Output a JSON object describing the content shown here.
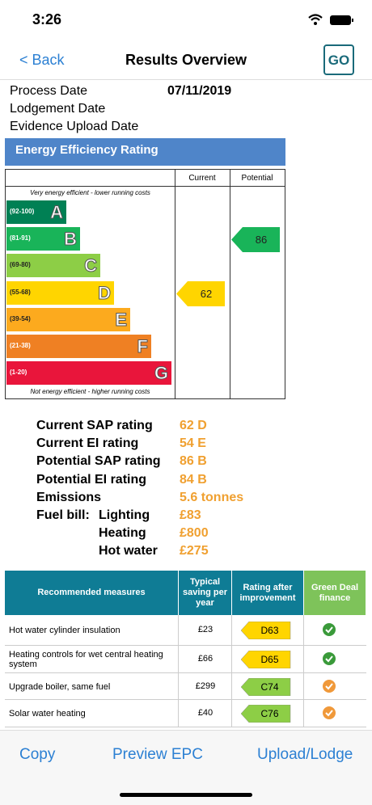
{
  "status_bar": {
    "time": "3:26"
  },
  "nav": {
    "back": "< Back",
    "title": "Results Overview",
    "logo": "GO"
  },
  "details": [
    {
      "label": "Process Date",
      "value": "07/11/2019"
    },
    {
      "label": "Lodgement Date"
    },
    {
      "label": "Evidence Upload Date"
    }
  ],
  "epc": {
    "title": "Energy Efficiency Rating",
    "col_current": "Current",
    "col_potential": "Potential",
    "top_note": "Very energy efficient - lower running costs",
    "bottom_note": "Not energy efficient - higher running costs",
    "bands": [
      {
        "range": "(92-100)",
        "letter": "A",
        "color": "#008054"
      },
      {
        "range": "(81-91)",
        "letter": "B",
        "color": "#19b459"
      },
      {
        "range": "(69-80)",
        "letter": "C",
        "color": "#8dce46"
      },
      {
        "range": "(55-68)",
        "letter": "D",
        "color": "#ffd500"
      },
      {
        "range": "(39-54)",
        "letter": "E",
        "color": "#fcaa1e"
      },
      {
        "range": "(21-38)",
        "letter": "F",
        "color": "#ef8023"
      },
      {
        "range": "(1-20)",
        "letter": "G",
        "color": "#e9153b"
      }
    ],
    "current": 62,
    "potential": 86
  },
  "summary": [
    {
      "label": "Current SAP rating",
      "value": "62 D"
    },
    {
      "label": "Current EI rating",
      "value": "54 E"
    },
    {
      "label": "Potential SAP rating",
      "value": "86 B"
    },
    {
      "label": "Potential EI rating",
      "value": "84 B"
    },
    {
      "label": "Emissions",
      "value": "5.6 tonnes"
    }
  ],
  "fuel_bill": {
    "label": "Fuel bill:",
    "items": [
      {
        "label": "Lighting",
        "value": "£83"
      },
      {
        "label": "Heating",
        "value": "£800"
      },
      {
        "label": "Hot water",
        "value": "£275"
      }
    ]
  },
  "measures": {
    "headers": [
      "Recommended measures",
      "Typical saving per year",
      "Rating after improvement",
      "Green Deal finance"
    ],
    "rows": [
      {
        "name": "Hot water cylinder insulation",
        "saving": "£23",
        "rating": "D63",
        "rating_color": "#ffd500",
        "icon_color": "#3a9a3a"
      },
      {
        "name": "Heating controls for wet central heating system",
        "saving": "£66",
        "rating": "D65",
        "rating_color": "#ffd500",
        "icon_color": "#3a9a3a"
      },
      {
        "name": "Upgrade boiler, same fuel",
        "saving": "£299",
        "rating": "C74",
        "rating_color": "#8dce46",
        "icon_color": "#f0993a"
      },
      {
        "name": "Solar water heating",
        "saving": "£40",
        "rating": "C76",
        "rating_color": "#8dce46",
        "icon_color": "#f0993a"
      }
    ]
  },
  "toolbar": [
    "Copy",
    "Preview EPC",
    "Upload/Lodge"
  ]
}
